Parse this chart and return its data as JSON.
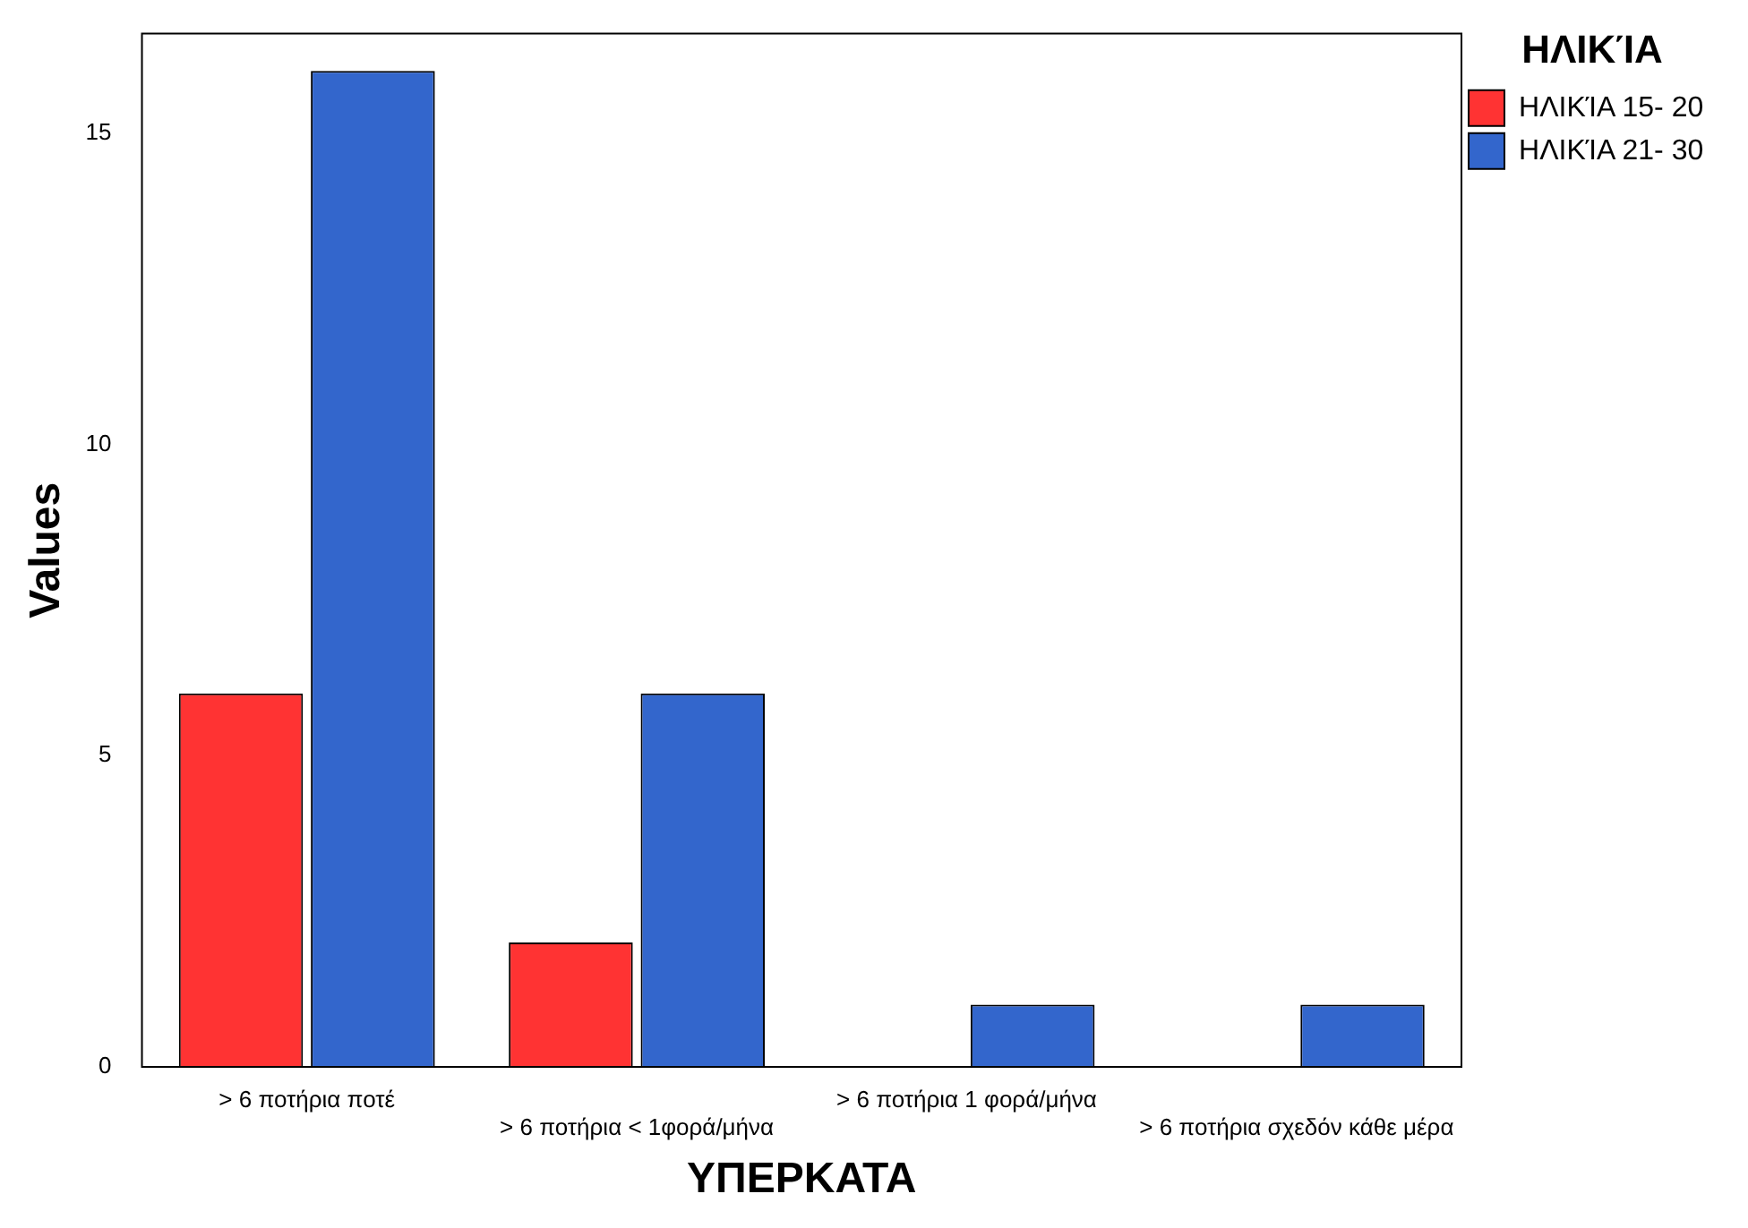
{
  "chart_data": {
    "type": "bar",
    "xlabel": "ΥΠΕΡΚΑΤΑ",
    "ylabel": "Values",
    "legend_title": "ΗΛΙΚΊΑ",
    "categories": [
      "> 6 ποτήρια ποτέ",
      "> 6 ποτήρια < 1φορά/μήνα",
      "> 6 ποτήρια 1 φορά/μήνα",
      "> 6 ποτήρια σχεδόν κάθε μέρα"
    ],
    "series": [
      {
        "name": "ΗΛΙΚΊΑ 15- 20",
        "color": "#ff3333",
        "values": [
          6,
          2,
          null,
          null
        ]
      },
      {
        "name": "ΗΛΙΚΊΑ 21- 30",
        "color": "#3366cc",
        "values": [
          16,
          6,
          1,
          1
        ]
      }
    ],
    "ylim": [
      0,
      16.6
    ],
    "yticks": [
      0,
      5,
      10,
      15
    ],
    "grid": false,
    "legend": "top right"
  }
}
